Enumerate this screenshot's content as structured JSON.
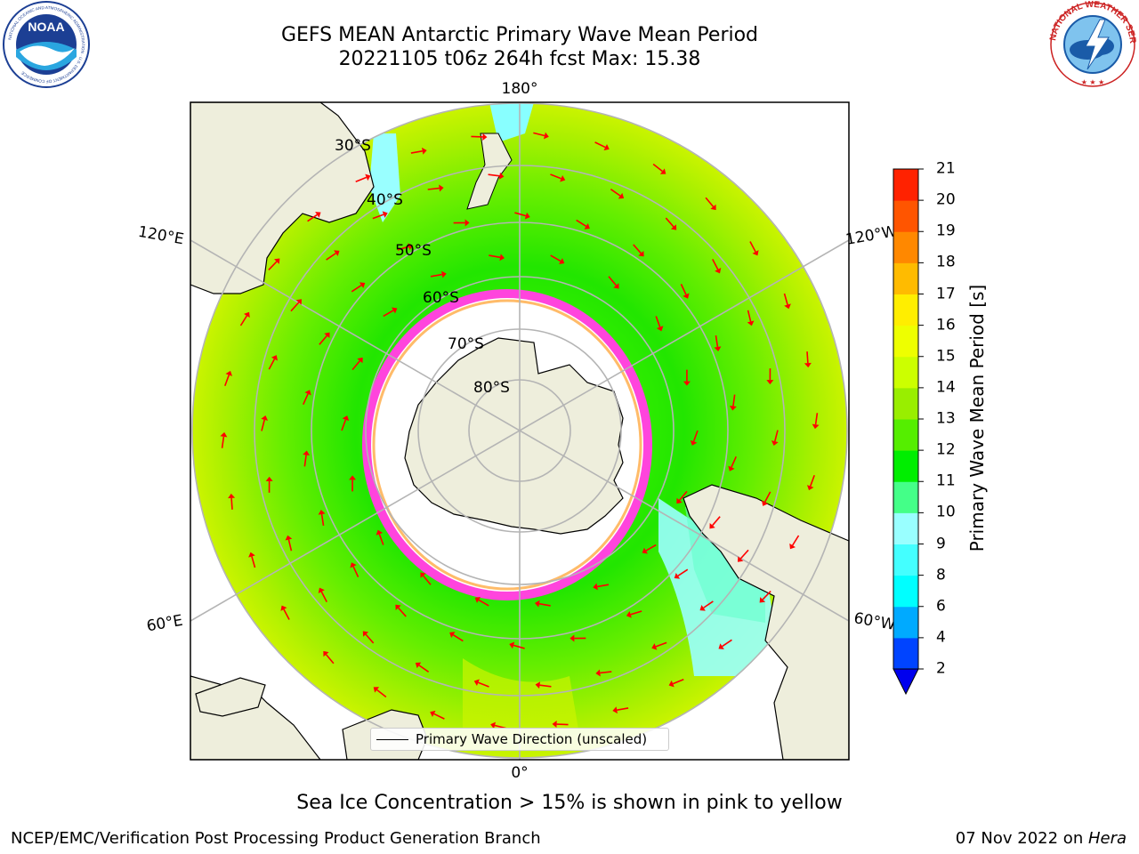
{
  "header": {
    "title_line1": "GEFS MEAN Antarctic Primary Wave Mean Period",
    "title_line2": "20221105 t06z 264h fcst   Max: 15.38"
  },
  "logos": {
    "noaa": {
      "text": "NOAA",
      "ring_text": "NATIONAL OCEANIC AND ATMOSPHERIC ADMINISTRATION · U.S. DEPARTMENT OF COMMERCE"
    },
    "nws": {
      "ring_text": "NATIONAL WEATHER SERVICE"
    }
  },
  "map": {
    "projection": "south polar stereographic",
    "lon_labels": {
      "top": "180°",
      "bottom": "0°",
      "upper_left": "120°E",
      "upper_right": "120°W",
      "lower_left": "60°E",
      "lower_right": "60°W"
    },
    "lat_labels": [
      "30°S",
      "40°S",
      "50°S",
      "60°S",
      "70°S",
      "80°S"
    ],
    "colors": {
      "land": "#eeeedc",
      "ice_edge": "#ff44dd",
      "arrow": "#ff0000",
      "grid": "#b4b4b4"
    }
  },
  "colorbar": {
    "title": "Primary Wave Mean Period [s]",
    "ticks": [
      "2",
      "4",
      "6",
      "8",
      "9",
      "10",
      "11",
      "12",
      "13",
      "14",
      "15",
      "16",
      "17",
      "18",
      "19",
      "20",
      "21"
    ],
    "colors": [
      "#0044ff",
      "#00aaff",
      "#00ffff",
      "#44ffff",
      "#99ffff",
      "#44ff88",
      "#00ee00",
      "#55ee00",
      "#99ee00",
      "#ccff00",
      "#eeff00",
      "#ffee00",
      "#ffbb00",
      "#ff8800",
      "#ff5500",
      "#ff2200",
      "#ff0000"
    ],
    "under_color": "#0000ee"
  },
  "legend": {
    "label": "Primary Wave Direction (unscaled)"
  },
  "caption": "Sea Ice Concentration > 15% is shown in pink to yellow",
  "footer": {
    "left": "NCEP/EMC/Verification Post Processing Product Generation Branch",
    "right_prefix": "07 Nov 2022 on ",
    "right_host": "Hera"
  }
}
